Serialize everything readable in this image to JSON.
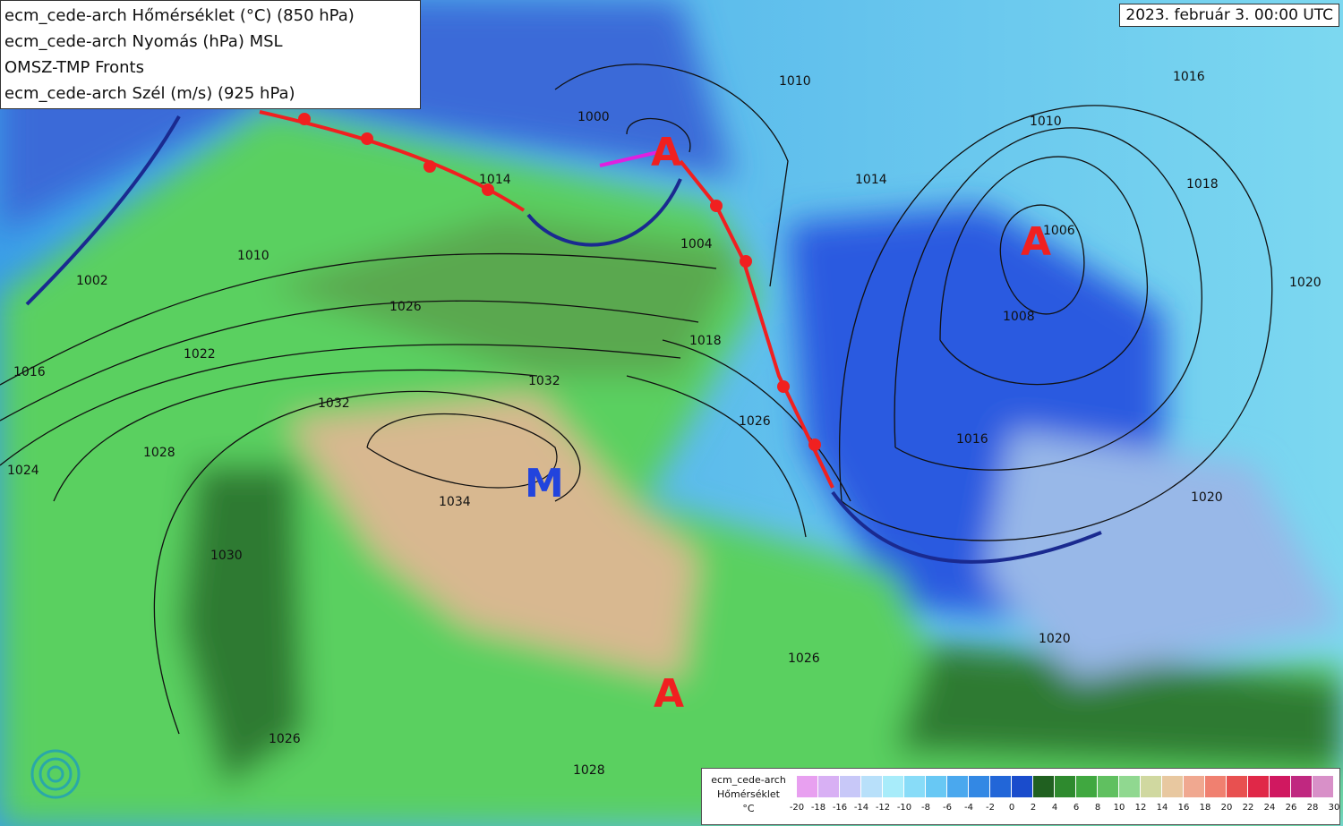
{
  "legend": [
    "ecm_cede-arch Hőmérséklet (°C) (850 hPa)",
    "ecm_cede-arch Nyomás (hPa) MSL",
    "OMSZ-TMP Fronts",
    "ecm_cede-arch Szél (m/s) (925 hPa)"
  ],
  "date": "2023. február 3. 00:00 UTC",
  "centers": [
    "A",
    "A",
    "A",
    "M"
  ],
  "isobars": [
    "1002",
    "1010",
    "1014",
    "1026",
    "1022",
    "1016",
    "1024",
    "1028",
    "1032",
    "1034",
    "1030",
    "1026",
    "1028",
    "1026",
    "1032",
    "1026",
    "1018",
    "1004",
    "1000",
    "1010",
    "1014",
    "1010",
    "1006",
    "1008",
    "1016",
    "1018",
    "1016",
    "1020",
    "1020",
    "1020"
  ],
  "colorbar": {
    "title": [
      "ecm_cede-arch",
      "Hőmérséklet",
      "°C"
    ],
    "ticks": [
      -20,
      -18,
      -16,
      -14,
      -12,
      -10,
      -8,
      -6,
      -4,
      -2,
      0,
      2,
      4,
      6,
      8,
      10,
      12,
      14,
      16,
      18,
      20,
      22,
      24,
      26,
      28,
      30
    ],
    "colors": [
      "#e8a0f0",
      "#d8b0f4",
      "#c8c8f8",
      "#b8e0fa",
      "#a8ecfa",
      "#88dcf8",
      "#68c8f4",
      "#4aa8ee",
      "#3388e4",
      "#2266d8",
      "#1a4ccc",
      "#206020",
      "#2e8a2e",
      "#40a840",
      "#60c060",
      "#90d890",
      "#d0d8a0",
      "#e8c8a0",
      "#f0a890",
      "#f08070",
      "#e85050",
      "#e02848",
      "#d01860",
      "#c02880",
      "#d890c8"
    ]
  }
}
